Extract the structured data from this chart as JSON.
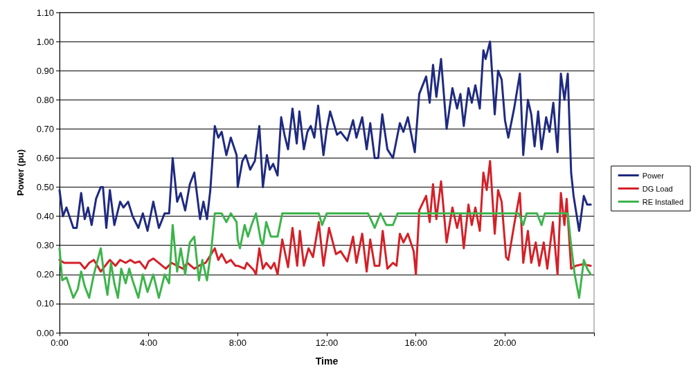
{
  "chart_data": {
    "type": "line",
    "xlabel": "Time",
    "ylabel": "Power (pu)",
    "xlim": [
      0,
      24
    ],
    "xticks": [
      {
        "value": 0,
        "label": "0:00"
      },
      {
        "value": 4,
        "label": "4:00"
      },
      {
        "value": 8,
        "label": "8:00"
      },
      {
        "value": 12,
        "label": "12:00"
      },
      {
        "value": 16,
        "label": "16:00"
      },
      {
        "value": 20,
        "label": "20:00"
      },
      {
        "value": 24,
        "label": null
      }
    ],
    "ylim": [
      0,
      1.1
    ],
    "yticks": [
      {
        "value": 0,
        "label": "0.00"
      },
      {
        "value": 0.1,
        "label": "0.10"
      },
      {
        "value": 0.2,
        "label": "0.20"
      },
      {
        "value": 0.3,
        "label": "0.30"
      },
      {
        "value": 0.4,
        "label": "0.40"
      },
      {
        "value": 0.5,
        "label": "0.50"
      },
      {
        "value": 0.6,
        "label": "0.60"
      },
      {
        "value": 0.7,
        "label": "0.70"
      },
      {
        "value": 0.8,
        "label": "0.80"
      },
      {
        "value": 0.9,
        "label": "0.90"
      },
      {
        "value": 1,
        "label": "1.00"
      },
      {
        "value": 1.1,
        "label": "1.10"
      }
    ],
    "grid": "y",
    "legend": "right",
    "marker": "none",
    "line_style": "solid",
    "series": [
      {
        "name": "Power",
        "color": "#1f2a80",
        "x": [
          0,
          0.15,
          0.31,
          0.62,
          0.77,
          0.97,
          1.13,
          1.28,
          1.44,
          1.64,
          1.85,
          1.95,
          2.1,
          2.26,
          2.46,
          2.72,
          2.87,
          3.08,
          3.28,
          3.54,
          3.74,
          3.95,
          4.21,
          4.46,
          4.72,
          4.92,
          5.08,
          5.28,
          5.44,
          5.64,
          5.85,
          6.05,
          6.31,
          6.46,
          6.62,
          6.77,
          6.97,
          7.13,
          7.28,
          7.49,
          7.69,
          7.95,
          8.0,
          8.21,
          8.36,
          8.56,
          8.77,
          8.97,
          9.13,
          9.31,
          9.44,
          9.59,
          9.79,
          9.95,
          10.1,
          10.26,
          10.46,
          10.65,
          10.77,
          10.97,
          11.13,
          11.28,
          11.44,
          11.61,
          11.85,
          12.0,
          12.15,
          12.46,
          12.62,
          12.92,
          13.18,
          13.33,
          13.59,
          13.79,
          13.95,
          14.15,
          14.31,
          14.49,
          14.72,
          14.97,
          15.28,
          15.44,
          15.64,
          15.95,
          16.15,
          16.46,
          16.62,
          16.77,
          16.92,
          17.13,
          17.38,
          17.64,
          17.85,
          18.0,
          18.15,
          18.36,
          18.51,
          18.67,
          18.87,
          19.03,
          19.13,
          19.33,
          19.54,
          19.69,
          19.85,
          20.0,
          20.15,
          20.41,
          20.67,
          20.82,
          21.03,
          21.18,
          21.33,
          21.49,
          21.64,
          21.85,
          22.0,
          22.17,
          22.36,
          22.51,
          22.67,
          22.82,
          22.97,
          23.08,
          23.33,
          23.54,
          23.69,
          23.85
        ],
        "values": [
          0.49,
          0.4,
          0.43,
          0.36,
          0.36,
          0.48,
          0.39,
          0.43,
          0.37,
          0.46,
          0.5,
          0.5,
          0.36,
          0.49,
          0.37,
          0.45,
          0.43,
          0.45,
          0.4,
          0.36,
          0.41,
          0.35,
          0.45,
          0.36,
          0.41,
          0.41,
          0.6,
          0.45,
          0.48,
          0.42,
          0.51,
          0.55,
          0.39,
          0.45,
          0.39,
          0.49,
          0.71,
          0.67,
          0.69,
          0.61,
          0.67,
          0.61,
          0.5,
          0.59,
          0.61,
          0.56,
          0.59,
          0.71,
          0.5,
          0.61,
          0.56,
          0.58,
          0.54,
          0.74,
          0.68,
          0.63,
          0.77,
          0.65,
          0.76,
          0.63,
          0.69,
          0.71,
          0.67,
          0.78,
          0.61,
          0.7,
          0.76,
          0.68,
          0.69,
          0.66,
          0.73,
          0.67,
          0.74,
          0.63,
          0.72,
          0.6,
          0.6,
          0.75,
          0.63,
          0.6,
          0.72,
          0.69,
          0.74,
          0.62,
          0.82,
          0.88,
          0.79,
          0.92,
          0.81,
          0.94,
          0.7,
          0.84,
          0.77,
          0.82,
          0.71,
          0.84,
          0.79,
          0.85,
          0.77,
          0.97,
          0.94,
          1.0,
          0.75,
          0.9,
          0.87,
          0.73,
          0.67,
          0.77,
          0.89,
          0.61,
          0.8,
          0.75,
          0.64,
          0.76,
          0.63,
          0.74,
          0.69,
          0.79,
          0.62,
          0.89,
          0.8,
          0.89,
          0.55,
          0.47,
          0.35,
          0.47,
          0.44,
          0.44
        ]
      },
      {
        "name": "DG Load",
        "color": "#d42027",
        "x": [
          0,
          0.21,
          0.62,
          0.92,
          1.13,
          1.33,
          1.54,
          1.85,
          2.05,
          2.26,
          2.51,
          2.72,
          2.97,
          3.18,
          3.38,
          3.59,
          3.85,
          4.0,
          4.21,
          4.77,
          5.03,
          5.54,
          5.74,
          6.05,
          6.26,
          6.56,
          6.97,
          7.13,
          7.28,
          7.49,
          7.69,
          7.9,
          8.0,
          8.31,
          8.41,
          8.72,
          8.82,
          8.97,
          9.13,
          9.28,
          9.49,
          9.64,
          9.79,
          10.0,
          10.26,
          10.46,
          10.67,
          10.79,
          10.97,
          11.18,
          11.38,
          11.64,
          11.85,
          12.1,
          12.41,
          12.62,
          12.92,
          13.18,
          13.33,
          13.59,
          13.79,
          13.95,
          14.15,
          14.36,
          14.51,
          14.72,
          14.97,
          15.13,
          15.28,
          15.44,
          15.64,
          15.9,
          16.0,
          16.15,
          16.46,
          16.62,
          16.77,
          16.92,
          17.13,
          17.38,
          17.64,
          17.85,
          18.0,
          18.15,
          18.36,
          18.51,
          18.67,
          18.87,
          19.03,
          19.18,
          19.33,
          19.54,
          19.69,
          19.85,
          20.05,
          20.15,
          20.41,
          20.67,
          20.82,
          21.03,
          21.18,
          21.38,
          21.54,
          21.74,
          21.9,
          22.15,
          22.36,
          22.51,
          22.67,
          22.77,
          22.97,
          23.18,
          23.49,
          23.85
        ],
        "values": [
          0.25,
          0.24,
          0.24,
          0.24,
          0.22,
          0.24,
          0.25,
          0.21,
          0.23,
          0.25,
          0.23,
          0.25,
          0.24,
          0.25,
          0.24,
          0.245,
          0.22,
          0.245,
          0.255,
          0.22,
          0.24,
          0.22,
          0.24,
          0.22,
          0.23,
          0.24,
          0.29,
          0.25,
          0.27,
          0.24,
          0.25,
          0.23,
          0.23,
          0.22,
          0.24,
          0.215,
          0.2,
          0.29,
          0.22,
          0.24,
          0.22,
          0.24,
          0.2,
          0.32,
          0.225,
          0.36,
          0.23,
          0.35,
          0.23,
          0.29,
          0.26,
          0.38,
          0.23,
          0.36,
          0.27,
          0.28,
          0.245,
          0.33,
          0.24,
          0.34,
          0.21,
          0.32,
          0.23,
          0.23,
          0.35,
          0.22,
          0.24,
          0.23,
          0.34,
          0.31,
          0.34,
          0.28,
          0.2,
          0.42,
          0.47,
          0.38,
          0.51,
          0.39,
          0.52,
          0.31,
          0.43,
          0.36,
          0.41,
          0.29,
          0.44,
          0.37,
          0.43,
          0.35,
          0.55,
          0.49,
          0.59,
          0.34,
          0.49,
          0.45,
          0.26,
          0.25,
          0.37,
          0.48,
          0.24,
          0.35,
          0.24,
          0.31,
          0.23,
          0.31,
          0.22,
          0.38,
          0.2,
          0.48,
          0.37,
          0.46,
          0.22,
          0.23,
          0.235,
          0.23
        ]
      },
      {
        "name": "RE Installed",
        "color": "#3cb44b",
        "x": [
          0,
          0.12,
          0.31,
          0.62,
          0.82,
          0.97,
          1.13,
          1.33,
          1.54,
          1.85,
          2.0,
          2.15,
          2.31,
          2.46,
          2.62,
          2.77,
          2.97,
          3.13,
          3.28,
          3.54,
          3.74,
          3.95,
          4.21,
          4.46,
          4.72,
          4.92,
          5.08,
          5.28,
          5.44,
          5.64,
          5.85,
          6.05,
          6.26,
          6.41,
          6.62,
          6.82,
          6.97,
          7.28,
          7.49,
          7.69,
          7.95,
          8.0,
          8.1,
          8.31,
          8.46,
          8.62,
          8.82,
          9.03,
          9.13,
          9.28,
          9.49,
          9.79,
          10.0,
          11.64,
          11.79,
          12.0,
          13.85,
          14.15,
          14.41,
          14.67,
          14.97,
          15.18,
          20.62,
          20.82,
          20.97,
          21.44,
          21.64,
          21.79,
          22.82,
          22.97,
          23.13,
          23.33,
          23.54,
          23.69,
          23.85
        ],
        "values": [
          0.29,
          0.18,
          0.19,
          0.12,
          0.15,
          0.21,
          0.16,
          0.12,
          0.2,
          0.29,
          0.2,
          0.13,
          0.24,
          0.17,
          0.12,
          0.22,
          0.17,
          0.22,
          0.18,
          0.12,
          0.2,
          0.14,
          0.2,
          0.12,
          0.2,
          0.17,
          0.37,
          0.21,
          0.29,
          0.2,
          0.31,
          0.33,
          0.18,
          0.25,
          0.18,
          0.29,
          0.41,
          0.41,
          0.38,
          0.41,
          0.38,
          0.32,
          0.29,
          0.37,
          0.33,
          0.37,
          0.41,
          0.32,
          0.3,
          0.38,
          0.33,
          0.33,
          0.41,
          0.41,
          0.37,
          0.41,
          0.41,
          0.36,
          0.41,
          0.37,
          0.37,
          0.41,
          0.41,
          0.37,
          0.41,
          0.41,
          0.37,
          0.41,
          0.41,
          0.3,
          0.2,
          0.12,
          0.25,
          0.22,
          0.2
        ]
      }
    ]
  }
}
